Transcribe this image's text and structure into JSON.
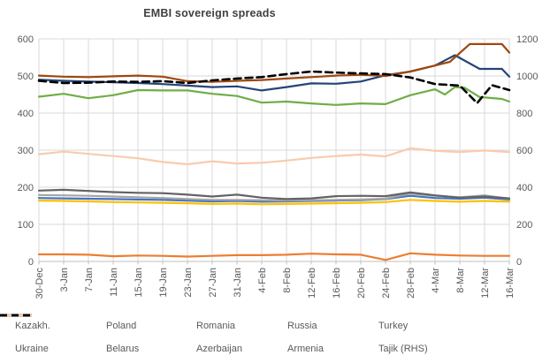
{
  "chart_data": {
    "type": "line",
    "title": "EMBI sovereign spreads",
    "grid": true,
    "legend_position": "bottom",
    "x_tick_labels": [
      "30-Dec",
      "3-Jan",
      "7-Jan",
      "11-Jan",
      "15-Jan",
      "19-Jan",
      "23-Jan",
      "27-Jan",
      "31-Jan",
      "4-Feb",
      "8-Feb",
      "12-Feb",
      "16-Feb",
      "20-Feb",
      "24-Feb",
      "28-Feb",
      "4-Mar",
      "8-Mar",
      "12-Mar",
      "16-Mar"
    ],
    "axes": {
      "left": {
        "min": 0,
        "max": 600,
        "step": 100,
        "ticks": [
          0,
          100,
          200,
          300,
          400,
          500,
          600
        ]
      },
      "right": {
        "min": 0,
        "max": 1200,
        "step": 200,
        "ticks": [
          0,
          200,
          400,
          600,
          800,
          1000,
          1200
        ],
        "used_by": "Tajik (RHS)"
      }
    },
    "series": [
      {
        "name": "Kazakh.",
        "color": "#4472C4",
        "axis": "left",
        "values": [
          171,
          170,
          169,
          168,
          167,
          166,
          164,
          162,
          163,
          161,
          162,
          163,
          164,
          165,
          168,
          177,
          171,
          169,
          172,
          167
        ]
      },
      {
        "name": "Poland",
        "color": "#ED7D31",
        "axis": "left",
        "values": [
          19,
          19,
          18,
          14,
          16,
          15,
          13,
          15,
          17,
          17,
          18,
          21,
          19,
          18,
          4,
          22,
          18,
          16,
          15,
          15
        ]
      },
      {
        "name": "Romania",
        "color": "#A5A5A5",
        "axis": "left",
        "values": [
          179,
          178,
          177,
          175,
          173,
          171,
          168,
          166,
          166,
          165,
          164,
          165,
          166,
          167,
          169,
          183,
          177,
          173,
          178,
          169
        ]
      },
      {
        "name": "Russia",
        "color": "#FFC000",
        "axis": "left",
        "values": [
          164,
          163,
          162,
          160,
          159,
          158,
          157,
          155,
          156,
          154,
          155,
          156,
          157,
          158,
          160,
          166,
          163,
          161,
          163,
          161
        ]
      },
      {
        "name": "Turkey",
        "color": "#70AD47",
        "axis": "left",
        "x": [
          0,
          1,
          2,
          3,
          4,
          5,
          6,
          7,
          8,
          9,
          10,
          11,
          12,
          13,
          14,
          15,
          16,
          16.4,
          16.8,
          17.2,
          17.8,
          18.7,
          19
        ],
        "values": [
          444,
          452,
          440,
          448,
          462,
          461,
          461,
          452,
          446,
          428,
          431,
          426,
          422,
          426,
          424,
          448,
          464,
          450,
          470,
          468,
          443,
          438,
          431
        ]
      },
      {
        "name": "Ukraine",
        "color": "#264478",
        "axis": "left",
        "x": [
          0,
          1,
          2,
          3,
          4,
          5,
          6,
          7,
          8,
          9,
          10,
          11,
          12,
          13,
          14,
          15,
          16,
          16.8,
          17.8,
          18.7,
          19
        ],
        "values": [
          490,
          487,
          485,
          483,
          481,
          478,
          474,
          470,
          472,
          461,
          470,
          480,
          479,
          485,
          502,
          512,
          528,
          556,
          519,
          519,
          498
        ]
      },
      {
        "name": "Belarus",
        "color": "#9E480E",
        "axis": "left",
        "x": [
          0,
          1,
          2,
          3,
          4,
          5,
          6,
          7,
          8,
          9,
          10,
          11,
          12,
          13,
          14,
          15,
          16,
          16.6,
          17.4,
          18.7,
          19
        ],
        "values": [
          501,
          498,
          497,
          499,
          501,
          498,
          486,
          484,
          487,
          489,
          493,
          497,
          501,
          503,
          500,
          512,
          528,
          538,
          586,
          586,
          563
        ]
      },
      {
        "name": "Azerbaijan",
        "color": "#636363",
        "axis": "left",
        "values": [
          191,
          193,
          190,
          187,
          185,
          184,
          180,
          175,
          180,
          172,
          168,
          170,
          176,
          177,
          176,
          186,
          178,
          172,
          175,
          170
        ]
      },
      {
        "name": "Armenia",
        "color": "#F8CBAD",
        "axis": "left",
        "values": [
          289,
          296,
          290,
          284,
          278,
          268,
          262,
          270,
          264,
          266,
          272,
          279,
          284,
          288,
          283,
          305,
          298,
          295,
          299,
          295
        ]
      },
      {
        "name": "Tajik (RHS)",
        "color": "#000000",
        "axis": "right",
        "dashed": true,
        "x": [
          0,
          1,
          2,
          3,
          4,
          5,
          6,
          7,
          8,
          9,
          10,
          11,
          12,
          13,
          14,
          15,
          16,
          17,
          17.7,
          18.3,
          19
        ],
        "values": [
          974,
          962,
          964,
          970,
          968,
          972,
          962,
          976,
          986,
          994,
          1010,
          1024,
          1018,
          1014,
          1010,
          992,
          956,
          948,
          854,
          950,
          924
        ]
      }
    ],
    "legend_rows": [
      [
        "Kazakh.",
        "Poland",
        "Romania",
        "Russia",
        "Turkey"
      ],
      [
        "Ukraine",
        "Belarus",
        "Azerbaijan",
        "Armenia",
        "Tajik (RHS)"
      ]
    ],
    "style": {
      "gridline_color": "#D9D9D9",
      "axis_line_color": "#BFBFBF",
      "tick_label_color": "#595959",
      "title_color": "#404040",
      "background": "#ffffff"
    }
  }
}
